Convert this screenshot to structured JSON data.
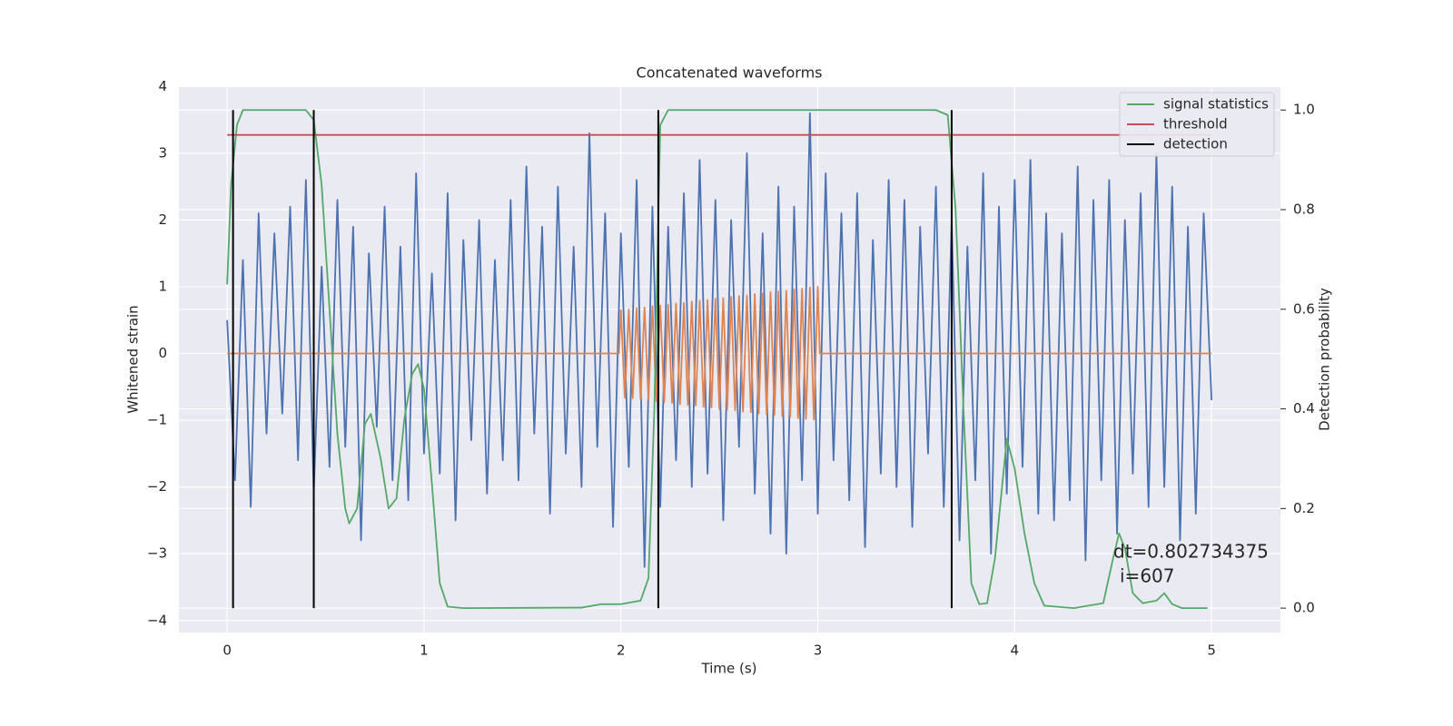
{
  "chart_data": {
    "type": "line",
    "title": "Concatenated waveforms",
    "xlabel": "Time (s)",
    "ylabel": "Whitened strain",
    "y2label": "Detection probability",
    "xlim": [
      -0.245,
      5.35
    ],
    "ylim": [
      -4.18,
      3.99
    ],
    "y2lim": [
      -0.049,
      1.046
    ],
    "xticks": [
      0,
      1,
      2,
      3,
      4,
      5
    ],
    "yticks": [
      {
        "value": -4,
        "label": "−4"
      },
      {
        "value": -3,
        "label": "−3"
      },
      {
        "value": -2,
        "label": "−2"
      },
      {
        "value": -1,
        "label": "−1"
      },
      0,
      1,
      2,
      3,
      4
    ],
    "y2ticks": [
      {
        "value": 0,
        "label": "0.0"
      },
      0.2,
      0.4,
      0.6,
      0.8,
      {
        "value": 1,
        "label": "1.0"
      }
    ],
    "grid": true,
    "legend": "upper right",
    "series": [
      {
        "color": "#4c72b0",
        "x": [
          0,
          0.04,
          0.08,
          0.12,
          0.16,
          0.2,
          0.24,
          0.28,
          0.32,
          0.36,
          0.4,
          0.44,
          0.48,
          0.52,
          0.56,
          0.6,
          0.64,
          0.68,
          0.72,
          0.76,
          0.8,
          0.84,
          0.88,
          0.92,
          0.96,
          1.0,
          1.04,
          1.08,
          1.12,
          1.16,
          1.2,
          1.24,
          1.28,
          1.32,
          1.36,
          1.4,
          1.44,
          1.48,
          1.52,
          1.56,
          1.6,
          1.64,
          1.68,
          1.72,
          1.76,
          1.8,
          1.84,
          1.88,
          1.92,
          1.96,
          2.0,
          2.04,
          2.08,
          2.12,
          2.16,
          2.2,
          2.24,
          2.28,
          2.32,
          2.36,
          2.4,
          2.44,
          2.48,
          2.52,
          2.56,
          2.6,
          2.64,
          2.68,
          2.72,
          2.76,
          2.8,
          2.84,
          2.88,
          2.92,
          2.96,
          3.0,
          3.04,
          3.08,
          3.12,
          3.16,
          3.2,
          3.24,
          3.28,
          3.32,
          3.36,
          3.4,
          3.44,
          3.48,
          3.52,
          3.56,
          3.6,
          3.64,
          3.68,
          3.72,
          3.76,
          3.8,
          3.84,
          3.88,
          3.92,
          3.96,
          4.0,
          4.04,
          4.08,
          4.12,
          4.16,
          4.2,
          4.24,
          4.28,
          4.32,
          4.36,
          4.4,
          4.44,
          4.48,
          4.52,
          4.56,
          4.6,
          4.64,
          4.68,
          4.72,
          4.76,
          4.8,
          4.84,
          4.88,
          4.92,
          4.96,
          5.0
        ],
        "values": [
          0.5,
          -1.9,
          1.4,
          -2.3,
          2.1,
          -1.2,
          1.8,
          -0.9,
          2.2,
          -1.6,
          2.6,
          -2.1,
          1.3,
          -1.7,
          2.3,
          -1.4,
          1.9,
          -2.8,
          1.5,
          -1.1,
          2.2,
          -1.9,
          1.6,
          -2.2,
          2.7,
          -1.5,
          1.2,
          -1.8,
          2.4,
          -2.5,
          1.7,
          -1.3,
          2.0,
          -2.1,
          1.4,
          -1.6,
          2.3,
          -1.9,
          2.8,
          -1.2,
          1.9,
          -2.4,
          2.5,
          -1.5,
          1.6,
          -2.0,
          3.3,
          -1.4,
          2.1,
          -2.6,
          1.8,
          -1.7,
          2.6,
          -3.2,
          2.2,
          -2.3,
          1.9,
          -1.6,
          2.4,
          -2.0,
          2.9,
          -1.8,
          2.3,
          -2.5,
          2.0,
          -1.4,
          3.0,
          -2.1,
          1.8,
          -2.7,
          2.5,
          -3.0,
          2.2,
          -1.9,
          3.6,
          -2.4,
          2.7,
          -1.6,
          2.1,
          -2.2,
          2.4,
          -2.9,
          1.7,
          -1.8,
          2.6,
          -2.0,
          2.3,
          -2.6,
          1.9,
          -1.5,
          2.5,
          -2.3,
          2.0,
          -2.8,
          1.6,
          -1.9,
          2.7,
          -3.0,
          2.2,
          -2.1,
          2.6,
          -1.7,
          2.9,
          -2.4,
          2.1,
          -2.5,
          1.8,
          -2.2,
          2.8,
          -3.1,
          2.3,
          -1.9,
          2.6,
          -2.7,
          2.0,
          -1.8,
          2.4,
          -2.3,
          3.0,
          -2.0,
          2.5,
          -2.8,
          1.9,
          -2.4,
          2.1,
          -0.7
        ]
      },
      {
        "color": "#dd8452",
        "x": [
          0,
          1.99,
          2.0,
          2.02,
          2.04,
          2.06,
          2.08,
          2.1,
          2.12,
          2.14,
          2.16,
          2.18,
          2.2,
          2.22,
          2.24,
          2.26,
          2.28,
          2.3,
          2.32,
          2.34,
          2.36,
          2.38,
          2.4,
          2.42,
          2.44,
          2.46,
          2.48,
          2.5,
          2.52,
          2.54,
          2.56,
          2.58,
          2.6,
          2.62,
          2.64,
          2.66,
          2.68,
          2.7,
          2.72,
          2.74,
          2.76,
          2.78,
          2.8,
          2.82,
          2.84,
          2.86,
          2.88,
          2.9,
          2.92,
          2.94,
          2.96,
          2.98,
          3.0,
          3.01,
          5
        ],
        "values": [
          0,
          0,
          0.65,
          -0.66,
          0.66,
          -0.67,
          0.68,
          -0.69,
          0.69,
          -0.7,
          0.71,
          -0.71,
          0.72,
          -0.73,
          0.73,
          -0.74,
          0.75,
          -0.76,
          0.76,
          -0.77,
          0.78,
          -0.78,
          0.79,
          -0.8,
          0.8,
          -0.81,
          0.82,
          -0.83,
          0.83,
          -0.84,
          0.85,
          -0.85,
          0.86,
          -0.87,
          0.87,
          -0.88,
          0.89,
          -0.9,
          0.9,
          -0.91,
          0.92,
          -0.92,
          0.93,
          -0.94,
          0.94,
          -0.95,
          0.96,
          -0.97,
          0.97,
          -0.98,
          0.99,
          -0.99,
          1.0,
          0,
          0
        ]
      },
      {
        "name": "signal statistics",
        "color": "#55a868",
        "axis": "y2",
        "x": [
          0,
          0.02,
          0.05,
          0.08,
          0.4,
          0.44,
          0.48,
          0.52,
          0.56,
          0.6,
          0.62,
          0.66,
          0.7,
          0.73,
          0.78,
          0.82,
          0.86,
          0.9,
          0.94,
          0.97,
          1.0,
          1.04,
          1.08,
          1.12,
          1.2,
          1.8,
          1.9,
          2.0,
          2.1,
          2.14,
          2.17,
          2.2,
          2.24,
          3.6,
          3.66,
          3.7,
          3.74,
          3.78,
          3.82,
          3.86,
          3.9,
          3.96,
          4.0,
          4.05,
          4.1,
          4.15,
          4.3,
          4.45,
          4.5,
          4.53,
          4.56,
          4.6,
          4.65,
          4.72,
          4.76,
          4.8,
          4.85,
          4.98
        ],
        "values": [
          0.65,
          0.85,
          0.97,
          1.0,
          1.0,
          0.98,
          0.85,
          0.6,
          0.35,
          0.2,
          0.17,
          0.2,
          0.37,
          0.39,
          0.3,
          0.2,
          0.22,
          0.38,
          0.47,
          0.49,
          0.44,
          0.25,
          0.05,
          0.003,
          0,
          0.001,
          0.008,
          0.008,
          0.015,
          0.06,
          0.4,
          0.97,
          1.0,
          1.0,
          0.99,
          0.8,
          0.4,
          0.05,
          0.008,
          0.01,
          0.1,
          0.34,
          0.28,
          0.15,
          0.05,
          0.005,
          0,
          0.01,
          0.1,
          0.15,
          0.12,
          0.03,
          0.01,
          0.015,
          0.03,
          0.008,
          0,
          0
        ]
      },
      {
        "name": "threshold",
        "color": "#c44e52",
        "axis": "y2",
        "x": [
          0,
          5
        ],
        "values": [
          0.95,
          0.95
        ]
      },
      {
        "name": "detection",
        "color": "#000000",
        "axis": "y2",
        "style": "vlines",
        "x": [
          0.03,
          0.44,
          2.19,
          3.68
        ],
        "span": [
          0,
          1
        ]
      }
    ],
    "annotations": [
      "dt=0.802734375",
      "i=607"
    ]
  }
}
